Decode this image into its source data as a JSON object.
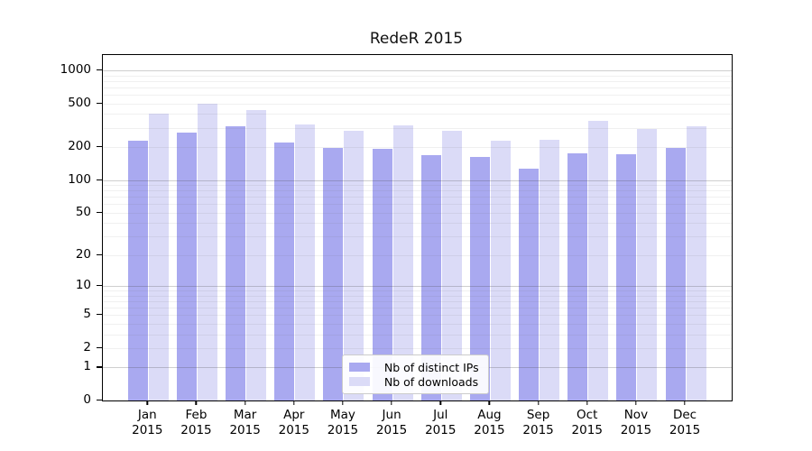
{
  "title": "RedeR 2015",
  "chart_data": {
    "type": "bar",
    "title": "RedeR 2015",
    "categories": [
      "Jan 2015",
      "Feb 2015",
      "Mar 2015",
      "Apr 2015",
      "May 2015",
      "Jun 2015",
      "Jul 2015",
      "Aug 2015",
      "Sep 2015",
      "Oct 2015",
      "Nov 2015",
      "Dec 2015"
    ],
    "series": [
      {
        "name": "Nb of distinct IPs",
        "color": "#a9a9f0",
        "values": [
          228,
          272,
          310,
          222,
          198,
          194,
          170,
          164,
          126,
          175,
          172,
          195
        ]
      },
      {
        "name": "Nb of downloads",
        "color": "#dbdbf7",
        "values": [
          400,
          500,
          437,
          323,
          283,
          313,
          283,
          229,
          233,
          350,
          290,
          311
        ]
      }
    ],
    "yticks": [
      0,
      1,
      2,
      5,
      10,
      20,
      50,
      100,
      200,
      500,
      1000
    ],
    "yscale": "log1p",
    "ylim": [
      0,
      1100
    ],
    "xlabel": "",
    "ylabel": "",
    "grid": "on",
    "gridlines_minor": [
      2,
      3,
      4,
      5,
      6,
      7,
      8,
      9,
      20,
      30,
      40,
      50,
      60,
      70,
      80,
      90,
      200,
      300,
      400,
      500,
      600,
      700,
      800,
      900
    ],
    "gridlines_major": [
      1,
      10,
      100,
      1000
    ],
    "legend_position": "lower center, inside plot"
  }
}
